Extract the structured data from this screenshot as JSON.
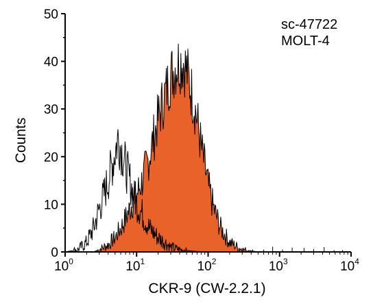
{
  "chart_data": {
    "type": "area",
    "x_scale": "log",
    "xlim": [
      1,
      10000
    ],
    "ylim": [
      0,
      50
    ],
    "grid": false,
    "xlabel": "CKR-9 (CW-2.2.1)",
    "ylabel": "Counts",
    "annotations": [
      "sc-47722",
      "MOLT-4"
    ],
    "x_ticks": [
      {
        "base": "10",
        "exp": "0",
        "value": 1
      },
      {
        "base": "10",
        "exp": "1",
        "value": 10
      },
      {
        "base": "10",
        "exp": "2",
        "value": 100
      },
      {
        "base": "10",
        "exp": "3",
        "value": 1000
      },
      {
        "base": "10",
        "exp": "4",
        "value": 10000
      }
    ],
    "y_ticks": [
      "0",
      "10",
      "20",
      "30",
      "40",
      "50"
    ],
    "colors": {
      "filled": "#e8622a",
      "outline": "#000000"
    },
    "series": [
      {
        "style": "outline",
        "x": [
          1,
          1.5,
          2,
          2.5,
          3,
          3.5,
          4,
          4.5,
          5,
          5.5,
          6,
          6.5,
          7,
          8,
          9,
          10,
          12,
          15,
          20,
          25,
          30,
          40,
          50,
          70,
          100
        ],
        "y": [
          0,
          0.5,
          2,
          5,
          9,
          12,
          15,
          18,
          21,
          24,
          22,
          20,
          18,
          15,
          12,
          10,
          8,
          5,
          3,
          2,
          1,
          0.5,
          0.3,
          0.1,
          0
        ]
      },
      {
        "style": "filled",
        "x": [
          2.5,
          3,
          4,
          5,
          6,
          7,
          8,
          10,
          12,
          15,
          18,
          20,
          25,
          30,
          35,
          40,
          45,
          50,
          60,
          70,
          80,
          100,
          120,
          150,
          200,
          300,
          500
        ],
        "y": [
          0,
          0.5,
          1.5,
          3,
          5,
          7,
          9,
          12,
          15,
          20,
          25,
          28,
          33,
          37,
          39,
          40,
          40,
          38,
          33,
          28,
          22,
          14,
          9,
          5,
          2,
          0.5,
          0
        ]
      }
    ]
  }
}
